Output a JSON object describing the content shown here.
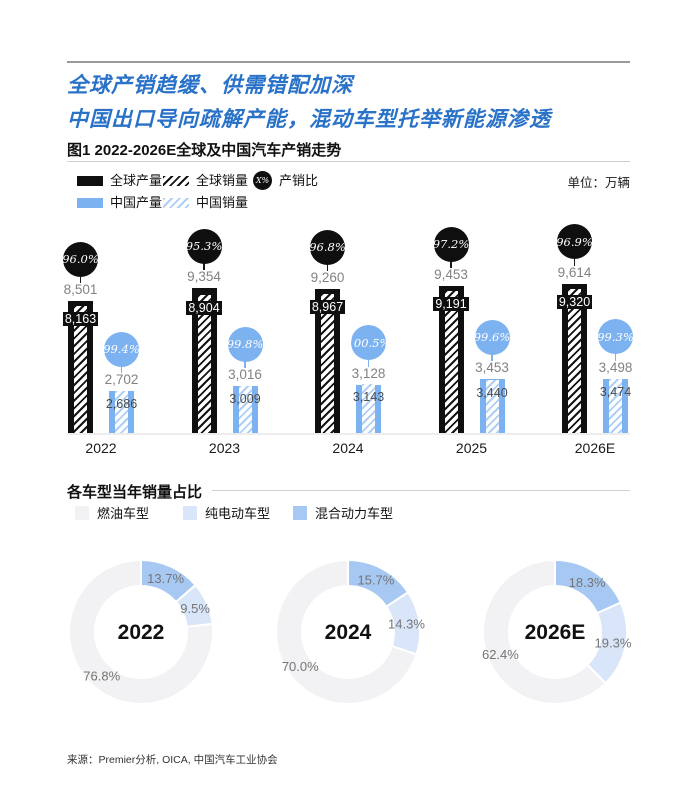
{
  "page": {
    "headline_line1": "全球产销趋缓、供需错配加深",
    "headline_line2": "中国出口导向疏解产能，混动车型托举新能源渗透",
    "figure_title": "图1 2022-2026E全球及中国汽车产销走势",
    "unit_label": "单位：万辆",
    "section2_title": "各车型当年销量占比",
    "source": "来源：Premier分析, OICA, 中国汽车工业协会"
  },
  "colors": {
    "title_blue": "#2a72c8",
    "bar_black": "#0f0f0f",
    "bar_blue": "#7db2f0",
    "hatch_blue": "#aecff5",
    "label_gray": "#828282",
    "donut_fuel_gray": "#f2f2f4",
    "donut_bev_light_blue": "#d9e6f9",
    "donut_hybrid_mid_blue": "#a6c8f2"
  },
  "bar_legend": [
    {
      "label": "全球产量",
      "type": "solid-black"
    },
    {
      "label": "全球销量",
      "type": "hatch-black"
    },
    {
      "label": "产销比",
      "type": "ratio-badge",
      "badge_text": "X%"
    },
    {
      "label": "中国产量",
      "type": "solid-blue"
    },
    {
      "label": "中国销量",
      "type": "hatch-blue"
    }
  ],
  "chart_data": [
    {
      "type": "bar",
      "title": "图1 2022-2026E全球及中国汽车产销走势",
      "unit": "万辆",
      "categories": [
        "2022",
        "2023",
        "2024",
        "2025",
        "2026E"
      ],
      "series": [
        {
          "name": "全球产量",
          "values": [
            8501,
            9354,
            9260,
            9453,
            9614
          ]
        },
        {
          "name": "全球销量",
          "values": [
            8163,
            8904,
            8967,
            9191,
            9320
          ]
        },
        {
          "name": "中国产量",
          "values": [
            2702,
            3016,
            3128,
            3453,
            3498
          ]
        },
        {
          "name": "中国销量",
          "values": [
            2686,
            3009,
            3143,
            3440,
            3474
          ]
        }
      ],
      "ratio_labels": {
        "global": [
          "96.0%",
          "95.3%",
          "96.8%",
          "97.2%",
          "96.9%"
        ],
        "china": [
          "99.4%",
          "99.8%",
          "100.5%",
          "99.6%",
          "99.3%"
        ]
      },
      "legend_position": "top-left",
      "grid": false
    },
    {
      "type": "pie",
      "title": "各车型当年销量占比",
      "legend": [
        "燃油车型",
        "纯电动车型",
        "混合动力车型"
      ],
      "donuts": [
        {
          "year": "2022",
          "hybrid": 13.7,
          "bev": 9.5,
          "fuel": 76.8
        },
        {
          "year": "2024",
          "hybrid": 15.7,
          "bev": 14.3,
          "fuel": 70.0
        },
        {
          "year": "2026E",
          "hybrid": 18.3,
          "bev": 19.3,
          "fuel": 62.4
        }
      ]
    }
  ]
}
